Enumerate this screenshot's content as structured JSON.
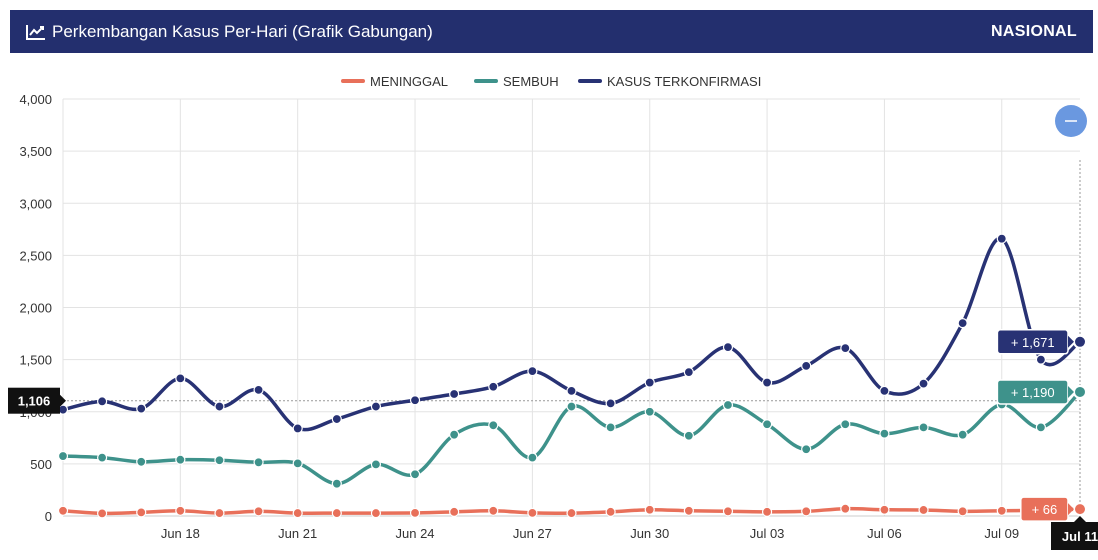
{
  "header": {
    "title": "Perkembangan Kasus Per-Hari (Grafik Gabungan)",
    "scope": "NASIONAL",
    "icon": "line-chart-icon",
    "background_color": "#232f6e"
  },
  "chart_data": {
    "type": "line",
    "categories": [
      "Jun 15",
      "Jun 16",
      "Jun 17",
      "Jun 18",
      "Jun 19",
      "Jun 20",
      "Jun 21",
      "Jun 22",
      "Jun 23",
      "Jun 24",
      "Jun 25",
      "Jun 26",
      "Jun 27",
      "Jun 28",
      "Jun 29",
      "Jun 30",
      "Jul 01",
      "Jul 02",
      "Jul 03",
      "Jul 04",
      "Jul 05",
      "Jul 06",
      "Jul 07",
      "Jul 08",
      "Jul 09",
      "Jul 10",
      "Jul 11"
    ],
    "x_tick_labels": [
      "Jun 18",
      "Jun 21",
      "Jun 24",
      "Jun 27",
      "Jun 30",
      "Jul 03",
      "Jul 06",
      "Jul 09"
    ],
    "highlighted_category": "Jul 11",
    "ylim": [
      0,
      4000
    ],
    "y_ticks": [
      "0",
      "500",
      "1,000",
      "1,500",
      "2,000",
      "2,500",
      "3,000",
      "3,500",
      "4,000"
    ],
    "grid": true,
    "legend_position": "top-center",
    "series": [
      {
        "name": "MENINGGAL",
        "color": "#e8705a",
        "values": [
          50,
          25,
          35,
          50,
          28,
          45,
          28,
          28,
          28,
          30,
          40,
          50,
          30,
          28,
          40,
          60,
          50,
          45,
          40,
          45,
          70,
          60,
          58,
          45,
          50,
          55,
          66
        ]
      },
      {
        "name": "SEMBUH",
        "color": "#3e928b",
        "values": [
          575,
          560,
          520,
          540,
          535,
          515,
          505,
          310,
          495,
          400,
          780,
          870,
          560,
          1050,
          850,
          1000,
          770,
          1065,
          880,
          640,
          880,
          790,
          850,
          780,
          1070,
          850,
          1190
        ]
      },
      {
        "name": "KASUS TERKONFIRMASI",
        "color": "#283274",
        "values": [
          1020,
          1100,
          1030,
          1320,
          1050,
          1210,
          840,
          930,
          1050,
          1110,
          1170,
          1240,
          1390,
          1200,
          1080,
          1280,
          1380,
          1620,
          1280,
          1440,
          1610,
          1200,
          1270,
          1850,
          2660,
          1500,
          1671
        ]
      }
    ],
    "crosshair_y_label": "1,106",
    "badges": [
      {
        "series": "KASUS TERKONFIRMASI",
        "text": "+ 1,671",
        "color": "#283274"
      },
      {
        "series": "SEMBUH",
        "text": "+ 1,190",
        "color": "#3e928b"
      },
      {
        "series": "MENINGGAL",
        "text": "+ 66",
        "color": "#e8705a"
      }
    ]
  },
  "zoom_button": {
    "icon": "minus-icon",
    "color": "#6a98e0"
  }
}
